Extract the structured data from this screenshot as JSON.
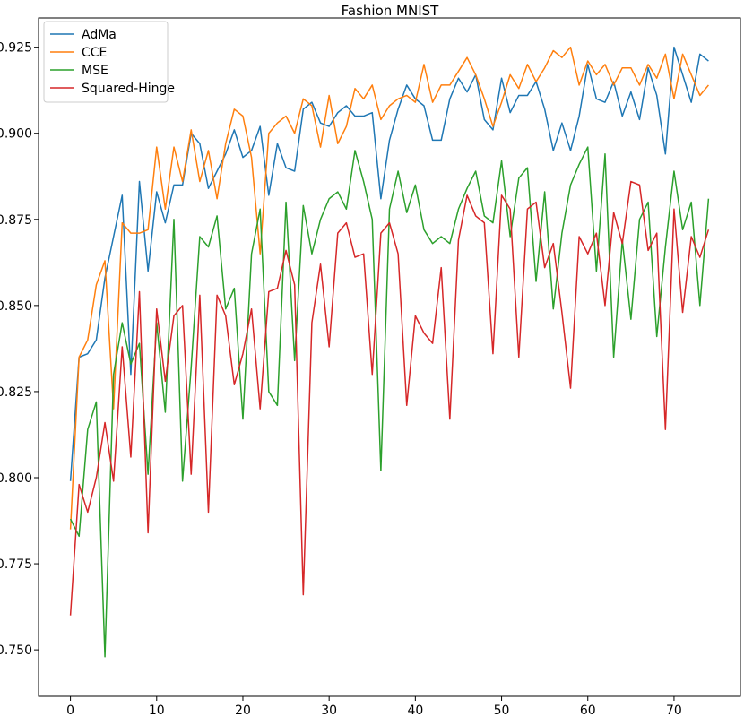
{
  "chart_data": {
    "type": "line",
    "title": "Fashion MNIST",
    "xlabel": "",
    "ylabel": "",
    "xlim": [
      -3.7,
      77.7
    ],
    "ylim": [
      0.7365,
      0.9335
    ],
    "xticks": [
      0,
      10,
      20,
      30,
      40,
      50,
      60,
      70
    ],
    "yticks": [
      0.75,
      0.775,
      0.8,
      0.825,
      0.85,
      0.875,
      0.9,
      0.925
    ],
    "ytick_labels": [
      "0.750",
      "0.775",
      "0.800",
      "0.825",
      "0.850",
      "0.875",
      "0.900",
      "0.925"
    ],
    "grid": false,
    "legend_position": "top-left",
    "x": [
      0,
      1,
      2,
      3,
      4,
      5,
      6,
      7,
      8,
      9,
      10,
      11,
      12,
      13,
      14,
      15,
      16,
      17,
      18,
      19,
      20,
      21,
      22,
      23,
      24,
      25,
      26,
      27,
      28,
      29,
      30,
      31,
      32,
      33,
      34,
      35,
      36,
      37,
      38,
      39,
      40,
      41,
      42,
      43,
      44,
      45,
      46,
      47,
      48,
      49,
      50,
      51,
      52,
      53,
      54,
      55,
      56,
      57,
      58,
      59,
      60,
      61,
      62,
      63,
      64,
      65,
      66,
      67,
      68,
      69,
      70,
      71,
      72,
      73,
      74
    ],
    "series": [
      {
        "name": "AdMa",
        "color": "#1f77b4",
        "values": [
          0.799,
          0.835,
          0.836,
          0.84,
          0.858,
          0.87,
          0.882,
          0.83,
          0.886,
          0.86,
          0.883,
          0.874,
          0.885,
          0.885,
          0.9,
          0.897,
          0.884,
          0.889,
          0.894,
          0.901,
          0.893,
          0.895,
          0.902,
          0.882,
          0.897,
          0.89,
          0.889,
          0.907,
          0.909,
          0.903,
          0.902,
          0.906,
          0.908,
          0.905,
          0.905,
          0.906,
          0.881,
          0.898,
          0.907,
          0.914,
          0.91,
          0.908,
          0.898,
          0.898,
          0.91,
          0.916,
          0.912,
          0.917,
          0.904,
          0.901,
          0.916,
          0.906,
          0.911,
          0.911,
          0.915,
          0.907,
          0.895,
          0.903,
          0.895,
          0.905,
          0.92,
          0.91,
          0.909,
          0.915,
          0.905,
          0.912,
          0.904,
          0.919,
          0.911,
          0.894,
          0.925,
          0.917,
          0.909,
          0.923,
          0.921
        ]
      },
      {
        "name": "CCE",
        "color": "#ff7f0e",
        "values": [
          0.785,
          0.835,
          0.84,
          0.856,
          0.863,
          0.82,
          0.874,
          0.871,
          0.871,
          0.872,
          0.896,
          0.878,
          0.896,
          0.886,
          0.901,
          0.886,
          0.895,
          0.881,
          0.897,
          0.907,
          0.905,
          0.893,
          0.865,
          0.9,
          0.903,
          0.905,
          0.9,
          0.91,
          0.908,
          0.896,
          0.911,
          0.897,
          0.902,
          0.913,
          0.91,
          0.914,
          0.904,
          0.908,
          0.91,
          0.911,
          0.909,
          0.92,
          0.909,
          0.914,
          0.914,
          0.918,
          0.922,
          0.917,
          0.91,
          0.902,
          0.909,
          0.917,
          0.913,
          0.92,
          0.915,
          0.919,
          0.924,
          0.922,
          0.925,
          0.914,
          0.921,
          0.917,
          0.92,
          0.914,
          0.919,
          0.919,
          0.914,
          0.92,
          0.916,
          0.923,
          0.91,
          0.923,
          0.917,
          0.911,
          0.914
        ]
      },
      {
        "name": "MSE",
        "color": "#2ca02c",
        "values": [
          0.788,
          0.783,
          0.814,
          0.822,
          0.748,
          0.83,
          0.845,
          0.833,
          0.839,
          0.801,
          0.845,
          0.819,
          0.875,
          0.799,
          0.832,
          0.87,
          0.867,
          0.876,
          0.849,
          0.855,
          0.817,
          0.865,
          0.878,
          0.825,
          0.821,
          0.88,
          0.834,
          0.879,
          0.865,
          0.875,
          0.881,
          0.883,
          0.878,
          0.895,
          0.886,
          0.875,
          0.802,
          0.878,
          0.889,
          0.877,
          0.885,
          0.872,
          0.868,
          0.87,
          0.868,
          0.878,
          0.884,
          0.889,
          0.876,
          0.874,
          0.892,
          0.87,
          0.887,
          0.89,
          0.857,
          0.883,
          0.849,
          0.871,
          0.885,
          0.891,
          0.896,
          0.86,
          0.894,
          0.835,
          0.869,
          0.846,
          0.875,
          0.88,
          0.841,
          0.867,
          0.889,
          0.872,
          0.88,
          0.85,
          0.881
        ]
      },
      {
        "name": "Squared-Hinge",
        "color": "#d62728",
        "values": [
          0.76,
          0.798,
          0.79,
          0.8,
          0.816,
          0.799,
          0.838,
          0.806,
          0.854,
          0.784,
          0.849,
          0.828,
          0.847,
          0.85,
          0.801,
          0.853,
          0.79,
          0.853,
          0.847,
          0.827,
          0.836,
          0.849,
          0.82,
          0.854,
          0.855,
          0.866,
          0.856,
          0.766,
          0.845,
          0.862,
          0.838,
          0.871,
          0.874,
          0.864,
          0.865,
          0.83,
          0.871,
          0.874,
          0.865,
          0.821,
          0.847,
          0.842,
          0.839,
          0.861,
          0.817,
          0.869,
          0.882,
          0.876,
          0.874,
          0.836,
          0.882,
          0.878,
          0.835,
          0.878,
          0.88,
          0.861,
          0.868,
          0.848,
          0.826,
          0.87,
          0.865,
          0.871,
          0.85,
          0.877,
          0.868,
          0.886,
          0.885,
          0.866,
          0.871,
          0.814,
          0.878,
          0.848,
          0.87,
          0.864,
          0.872
        ]
      }
    ]
  }
}
